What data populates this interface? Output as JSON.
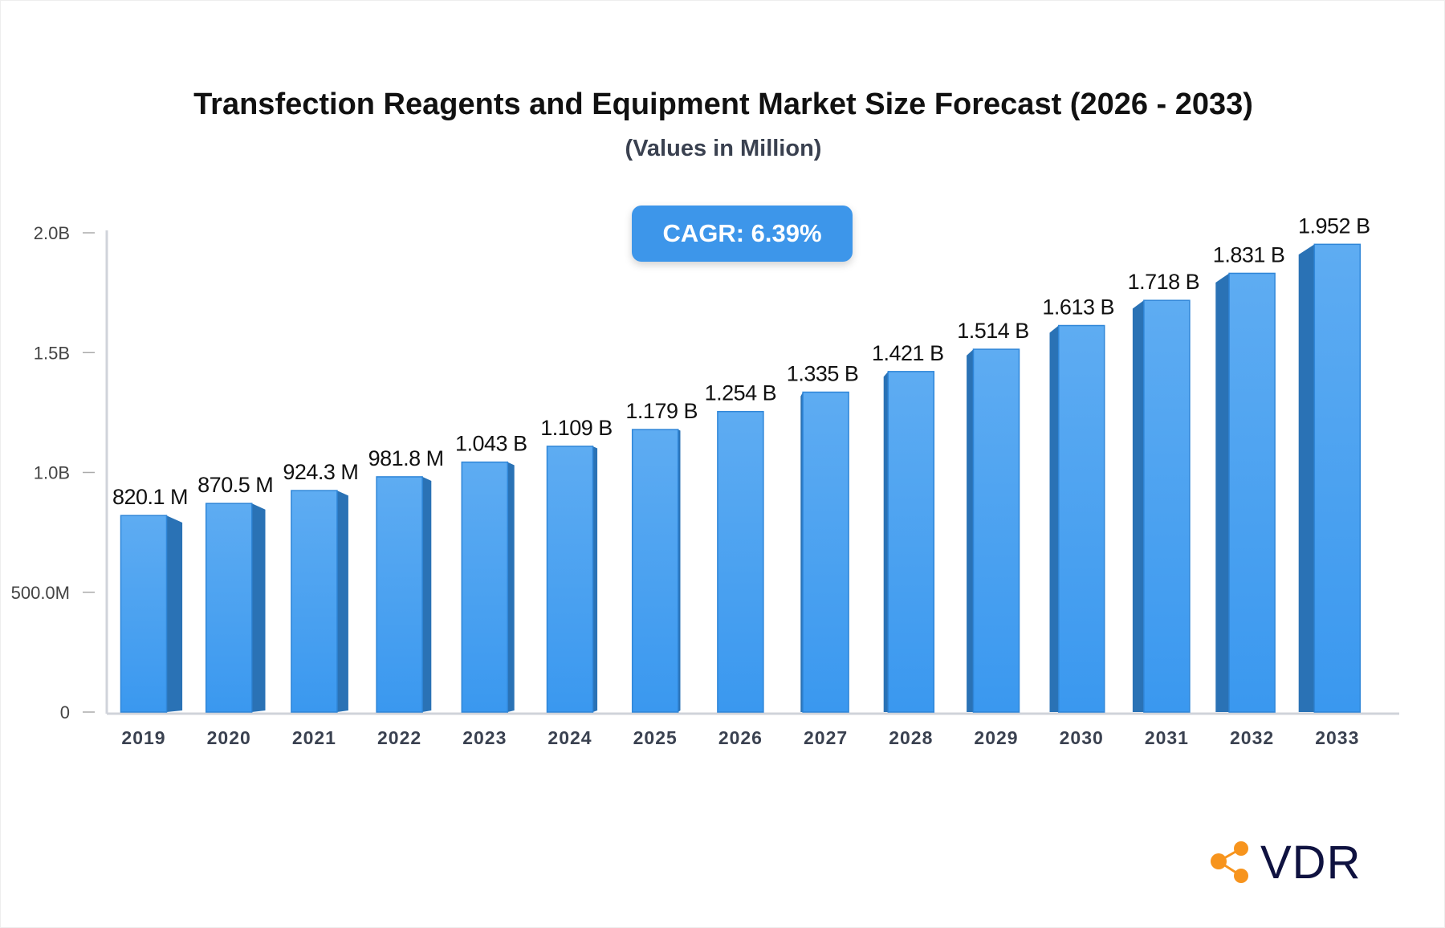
{
  "chart_data": {
    "type": "bar",
    "title": "Transfection Reagents and Equipment Market Size Forecast (2026 - 2033)",
    "subtitle": "(Values in Million)",
    "annotation": "CAGR: 6.39%",
    "categories": [
      "2019",
      "2020",
      "2021",
      "2022",
      "2023",
      "2024",
      "2025",
      "2026",
      "2027",
      "2028",
      "2029",
      "2030",
      "2031",
      "2032",
      "2033"
    ],
    "values": [
      820.1,
      870.5,
      924.3,
      981.8,
      1043,
      1109,
      1179,
      1254,
      1335,
      1421,
      1514,
      1613,
      1718,
      1831,
      1952
    ],
    "data_labels": [
      "820.1 M",
      "870.5 M",
      "924.3 M",
      "981.8 M",
      "1.043 B",
      "1.109 B",
      "1.179 B",
      "1.254 B",
      "1.335 B",
      "1.421 B",
      "1.514 B",
      "1.613 B",
      "1.718 B",
      "1.831 B",
      "1.952 B"
    ],
    "yticks": [
      0,
      500,
      1000,
      1500,
      2000
    ],
    "ytick_labels": [
      "0",
      "500.0M",
      "1.0B",
      "1.5B",
      "2.0B"
    ],
    "ylim": [
      0,
      2000
    ],
    "xlabel": "",
    "ylabel": "",
    "grid": false,
    "colors": {
      "bar_front": "#4aa3f0",
      "bar_side": "#2a72b5",
      "axis": "#d0d3da"
    }
  },
  "logo": {
    "text": "VDR",
    "accent": "#f7941d",
    "text_color": "#0f1240"
  }
}
